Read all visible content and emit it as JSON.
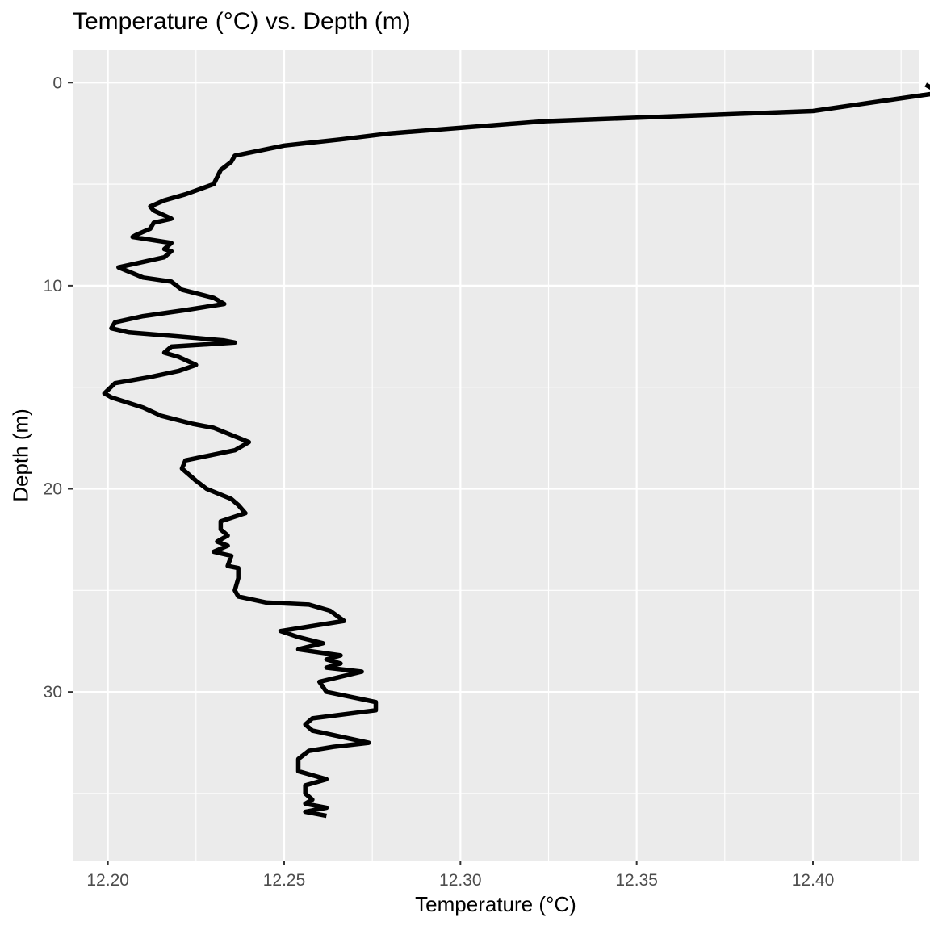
{
  "chart_data": {
    "type": "line",
    "title": "Temperature (°C) vs. Depth (m)",
    "xlabel": "Temperature (°C)",
    "ylabel": "Depth (m)",
    "xlim": [
      12.19,
      12.43
    ],
    "ylim": [
      38.3,
      -1.6
    ],
    "y_reversed": true,
    "x_ticks": [
      12.2,
      12.25,
      12.3,
      12.35,
      12.4
    ],
    "x_tick_labels": [
      "12.20",
      "12.25",
      "12.30",
      "12.35",
      "12.40"
    ],
    "y_ticks": [
      0,
      10,
      20,
      30
    ],
    "y_tick_labels": [
      "0",
      "10",
      "20",
      "30"
    ],
    "grid": true,
    "colors": {
      "panel": "#ebebeb",
      "grid": "#ffffff",
      "line": "#000000",
      "tick_text": "#4d4d4d"
    },
    "series": [
      {
        "x": [
          12.432,
          12.436,
          12.416,
          12.4,
          12.37,
          12.324,
          12.28,
          12.266,
          12.25,
          12.236,
          12.235,
          12.232,
          12.23,
          12.222,
          12.216,
          12.212,
          12.213,
          12.218,
          12.213,
          12.212,
          12.208,
          12.207,
          12.218,
          12.216,
          12.218,
          12.216,
          12.203,
          12.21,
          12.218,
          12.221,
          12.23,
          12.233,
          12.222,
          12.21,
          12.202,
          12.201,
          12.206,
          12.22,
          12.233,
          12.236,
          12.218,
          12.216,
          12.22,
          12.225,
          12.22,
          12.212,
          12.202,
          12.199,
          12.201,
          12.21,
          12.215,
          12.224,
          12.23,
          12.24,
          12.236,
          12.222,
          12.221,
          12.225,
          12.228,
          12.235,
          12.237,
          12.239,
          12.232,
          12.232,
          12.234,
          12.231,
          12.234,
          12.23,
          12.235,
          12.234,
          12.237,
          12.237,
          12.236,
          12.237,
          12.245,
          12.257,
          12.263,
          12.267,
          12.249,
          12.254,
          12.261,
          12.254,
          12.266,
          12.262,
          12.266,
          12.262,
          12.272,
          12.26,
          12.262,
          12.276,
          12.276,
          12.258,
          12.256,
          12.258,
          12.274,
          12.264,
          12.257,
          12.254,
          12.254,
          12.262,
          12.256,
          12.256,
          12.258,
          12.256,
          12.262,
          12.256,
          12.262
        ]
      }
    ],
    "y_values_depth": [
      0.1,
      0.5,
      1.0,
      1.4,
      1.6,
      1.9,
      2.5,
      2.8,
      3.1,
      3.6,
      3.9,
      4.3,
      5.0,
      5.5,
      5.8,
      6.1,
      6.3,
      6.7,
      6.9,
      7.2,
      7.5,
      7.6,
      7.9,
      8.2,
      8.3,
      8.6,
      9.1,
      9.6,
      9.8,
      10.2,
      10.6,
      10.9,
      11.2,
      11.5,
      11.8,
      12.1,
      12.3,
      12.5,
      12.7,
      12.8,
      13.0,
      13.3,
      13.5,
      13.9,
      14.2,
      14.5,
      14.8,
      15.3,
      15.5,
      16.0,
      16.4,
      16.8,
      17.0,
      17.7,
      18.1,
      18.6,
      19.0,
      19.6,
      20.0,
      20.5,
      20.8,
      21.2,
      21.6,
      22.0,
      22.3,
      22.6,
      22.8,
      23.1,
      23.3,
      23.8,
      23.9,
      24.4,
      25.0,
      25.3,
      25.6,
      25.7,
      26.0,
      26.5,
      27.0,
      27.3,
      27.6,
      27.9,
      28.2,
      28.4,
      28.6,
      28.8,
      29.0,
      29.5,
      30.0,
      30.5,
      30.9,
      31.3,
      31.6,
      31.9,
      32.5,
      32.7,
      32.9,
      33.3,
      33.9,
      34.3,
      34.6,
      35.0,
      35.3,
      35.5,
      35.7,
      35.9,
      36.1
    ]
  }
}
